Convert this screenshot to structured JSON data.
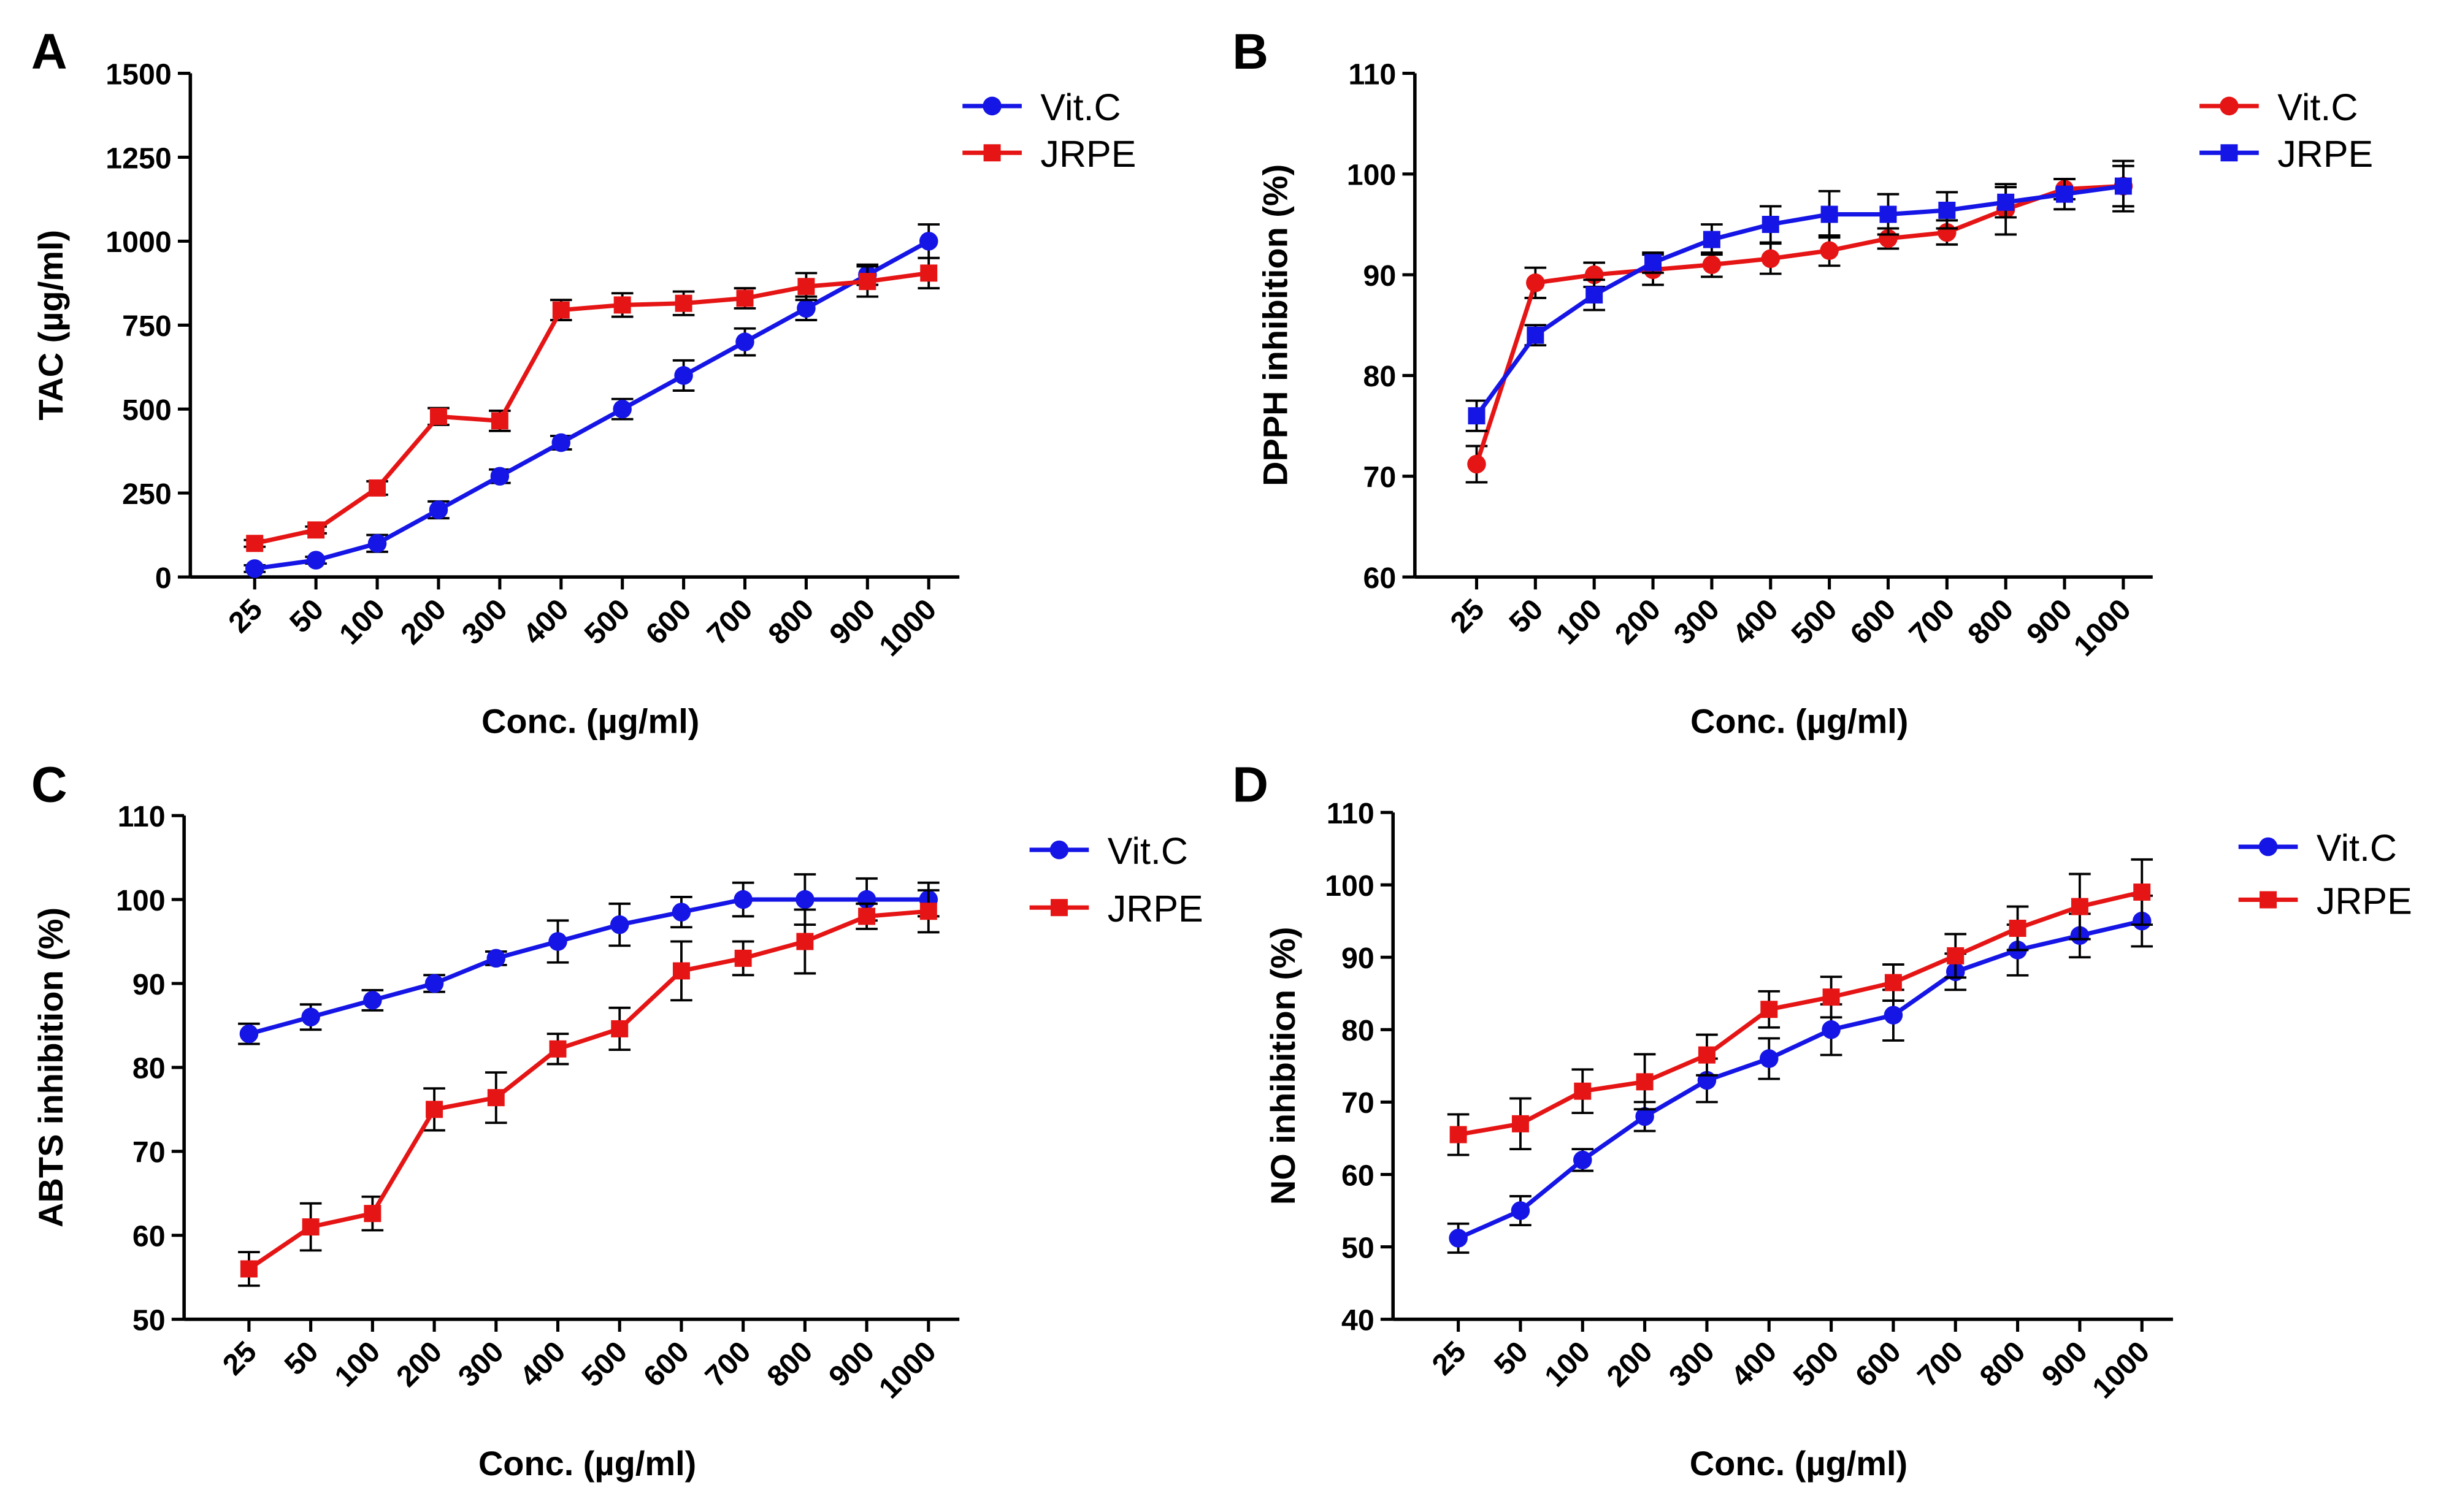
{
  "chart_data": [
    {
      "type": "line",
      "panel_label": "A",
      "x_label": "Conc. (µg/ml)",
      "y_label": "TAC (µg/ml)",
      "categories": [
        "25",
        "50",
        "100",
        "200",
        "300",
        "400",
        "500",
        "600",
        "700",
        "800",
        "900",
        "1000"
      ],
      "ylim": [
        0,
        1500
      ],
      "yticks": [
        0,
        250,
        500,
        750,
        1000,
        1250,
        1500
      ],
      "series": [
        {
          "name": "Vit.C",
          "color": "#1515e6",
          "marker": "circle",
          "values": [
            25,
            50,
            100,
            200,
            300,
            400,
            500,
            600,
            700,
            800,
            900,
            1000
          ],
          "errors": [
            10,
            10,
            25,
            25,
            20,
            20,
            30,
            45,
            40,
            35,
            30,
            50
          ]
        },
        {
          "name": "JRPE",
          "color": "#e61515",
          "marker": "square",
          "values": [
            100,
            140,
            265,
            478,
            465,
            795,
            810,
            815,
            830,
            865,
            880,
            905
          ],
          "errors": [
            10,
            10,
            20,
            25,
            30,
            30,
            35,
            35,
            30,
            40,
            45,
            45
          ]
        }
      ]
    },
    {
      "type": "line",
      "panel_label": "B",
      "x_label": "Conc. (µg/ml)",
      "y_label": "DPPH inhibition (%)",
      "categories": [
        "25",
        "50",
        "100",
        "200",
        "300",
        "400",
        "500",
        "600",
        "700",
        "800",
        "900",
        "1000"
      ],
      "ylim": [
        60,
        110
      ],
      "yticks": [
        60,
        70,
        80,
        90,
        100,
        110
      ],
      "series": [
        {
          "name": "Vit.C",
          "color": "#e61515",
          "marker": "circle",
          "values": [
            71.2,
            89.2,
            90,
            90.5,
            91,
            91.6,
            92.4,
            93.6,
            94.2,
            96.5,
            98.5,
            98.8
          ],
          "errors": [
            1.8,
            1.5,
            1.2,
            1.5,
            1.2,
            1.5,
            1.5,
            1,
            1.2,
            2.5,
            1,
            2
          ]
        },
        {
          "name": "JRPE",
          "color": "#1515e6",
          "marker": "square",
          "values": [
            76,
            84,
            88,
            91.2,
            93.5,
            95,
            96,
            96,
            96.4,
            97.2,
            98,
            98.8
          ],
          "errors": [
            1.5,
            1,
            1.5,
            1,
            1.5,
            1.8,
            2.3,
            2,
            1.8,
            1.5,
            1.5,
            2.5
          ]
        }
      ]
    },
    {
      "type": "line",
      "panel_label": "C",
      "x_label": "Conc. (µg/ml)",
      "y_label": "ABTS inhibition (%)",
      "categories": [
        "25",
        "50",
        "100",
        "200",
        "300",
        "400",
        "500",
        "600",
        "700",
        "800",
        "900",
        "1000"
      ],
      "ylim": [
        50,
        110
      ],
      "yticks": [
        50,
        60,
        70,
        80,
        90,
        100,
        110
      ],
      "series": [
        {
          "name": "Vit.C",
          "color": "#1515e6",
          "marker": "circle",
          "values": [
            84,
            86,
            88,
            90,
            93,
            95,
            97,
            98.5,
            100,
            100,
            100,
            100
          ],
          "errors": [
            1.2,
            1.5,
            1.2,
            1,
            0.8,
            2.5,
            2.5,
            1.8,
            2,
            3,
            2.5,
            2
          ]
        },
        {
          "name": "JRPE",
          "color": "#e61515",
          "marker": "square",
          "values": [
            56,
            61,
            62.6,
            75,
            76.4,
            82.2,
            84.6,
            91.5,
            93,
            95,
            98,
            98.6
          ],
          "errors": [
            2,
            2.8,
            2,
            2.5,
            3,
            1.8,
            2.5,
            3.5,
            2,
            3.8,
            1.5,
            2.5
          ]
        }
      ]
    },
    {
      "type": "line",
      "panel_label": "D",
      "x_label": "Conc. (µg/ml)",
      "y_label": "NO inhibition (%)",
      "categories": [
        "25",
        "50",
        "100",
        "200",
        "300",
        "400",
        "500",
        "600",
        "700",
        "800",
        "900",
        "1000"
      ],
      "ylim": [
        40,
        110
      ],
      "yticks": [
        40,
        50,
        60,
        70,
        80,
        90,
        100,
        110
      ],
      "series": [
        {
          "name": "Vit.C",
          "color": "#1515e6",
          "marker": "circle",
          "values": [
            51.2,
            55,
            62,
            68,
            73,
            76,
            80,
            82,
            88,
            91,
            93,
            95
          ],
          "errors": [
            2,
            2,
            1.5,
            2,
            3,
            2.8,
            3.5,
            3.5,
            2.5,
            3.5,
            3,
            3.5
          ]
        },
        {
          "name": "JRPE",
          "color": "#e61515",
          "marker": "square",
          "values": [
            65.5,
            67,
            71.5,
            72.8,
            76.5,
            82.8,
            84.5,
            86.5,
            90.2,
            94,
            97,
            99
          ],
          "errors": [
            2.8,
            3.5,
            3,
            3.8,
            2.8,
            2.5,
            2.8,
            2.5,
            3,
            3,
            4.5,
            4.5
          ]
        }
      ]
    }
  ]
}
